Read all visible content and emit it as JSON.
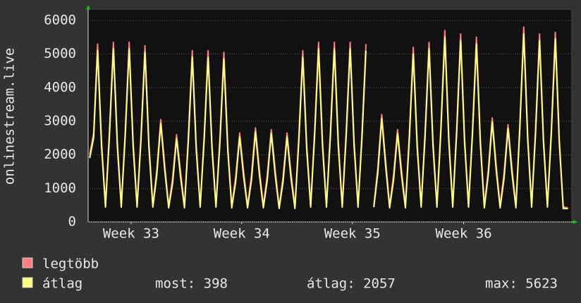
{
  "chart_data": {
    "type": "line",
    "ylabel": "onlinestream.live",
    "x": [
      0.1,
      0.35,
      0.6,
      0.85,
      1.1,
      1.35,
      1.6,
      1.85,
      2.1,
      2.35,
      2.6,
      2.85,
      3.1,
      3.35,
      3.6,
      3.85,
      4.1,
      4.35,
      4.6,
      4.85,
      5.1,
      5.35,
      5.6,
      5.85,
      6.1,
      6.35,
      6.6,
      6.85,
      7.1,
      7.35,
      7.6,
      7.85,
      8.1,
      8.35,
      8.6,
      8.85,
      9.1,
      9.35,
      9.6,
      9.85,
      10.1,
      10.35,
      10.6,
      10.85,
      11.1,
      11.35,
      11.6,
      11.85,
      12.1,
      12.35,
      12.6,
      12.85,
      13.1,
      13.35,
      13.6,
      13.85,
      14.1,
      14.35,
      14.6,
      14.85,
      15.1,
      15.35,
      15.6,
      15.85,
      16.1,
      16.35,
      16.6,
      16.85,
      17.1,
      17.35,
      17.6,
      17.85,
      18.1,
      18.35,
      18.6,
      18.85,
      19.1,
      19.35,
      19.6,
      19.85,
      20.1,
      20.35,
      20.6,
      20.85,
      21.1,
      21.35,
      21.6,
      21.85,
      22.1,
      22.35,
      22.6,
      22.85,
      23.1,
      23.35,
      23.6,
      23.85,
      24.1,
      24.35,
      24.6,
      24.85,
      25.1,
      25.35,
      25.6,
      25.85,
      26.1,
      26.35,
      26.6,
      26.85,
      27.1,
      27.35,
      27.6,
      27.85,
      28.1,
      28.35,
      28.6,
      28.85,
      29.1,
      29.35,
      29.6,
      29.85,
      30.1,
      30.4
    ],
    "series": [
      {
        "name": "legtöbb",
        "color": "#ff7f7f",
        "values": [
          2000,
          2650,
          5300,
          2400,
          500,
          2700,
          5350,
          2400,
          500,
          2700,
          5350,
          2400,
          500,
          2600,
          5250,
          2350,
          500,
          1550,
          3050,
          1700,
          480,
          1300,
          2600,
          1500,
          480,
          2550,
          5100,
          2300,
          500,
          2550,
          5100,
          2300,
          500,
          2500,
          5050,
          2250,
          480,
          1350,
          2650,
          1500,
          480,
          1400,
          2800,
          1550,
          480,
          1400,
          2750,
          1550,
          450,
          1350,
          2650,
          1450,
          450,
          2550,
          5100,
          2300,
          500,
          2700,
          5350,
          2400,
          500,
          2700,
          5350,
          2400,
          500,
          2700,
          5350,
          2400,
          500,
          2650,
          5300,
          null,
          500,
          1600,
          3200,
          1800,
          480,
          1400,
          2750,
          1550,
          480,
          2600,
          5200,
          2350,
          500,
          2700,
          5350,
          2400,
          500,
          2850,
          5700,
          2550,
          500,
          2800,
          5600,
          2500,
          500,
          2750,
          5500,
          2450,
          480,
          1550,
          3100,
          1700,
          480,
          1450,
          2900,
          1600,
          480,
          2900,
          5800,
          2600,
          500,
          2800,
          5600,
          2500,
          500,
          2800,
          5650,
          2500,
          450,
          420
        ]
      },
      {
        "name": "átlag",
        "color": "#ffff80",
        "values": [
          1900,
          2500,
          5100,
          2250,
          440,
          2550,
          5150,
          2250,
          440,
          2550,
          5150,
          2250,
          440,
          2450,
          5050,
          2200,
          440,
          1400,
          2930,
          1550,
          420,
          1150,
          2480,
          1350,
          420,
          2400,
          4900,
          2150,
          440,
          2400,
          4900,
          2150,
          440,
          2350,
          4850,
          2100,
          420,
          1200,
          2530,
          1350,
          420,
          1250,
          2680,
          1400,
          420,
          1250,
          2630,
          1400,
          400,
          1200,
          2530,
          1300,
          400,
          2400,
          4900,
          2150,
          440,
          2550,
          5150,
          2250,
          440,
          2550,
          5150,
          2250,
          440,
          2550,
          5150,
          2250,
          440,
          2500,
          5100,
          null,
          440,
          1450,
          3080,
          1650,
          420,
          1250,
          2630,
          1400,
          420,
          2450,
          5000,
          2200,
          440,
          2550,
          5150,
          2250,
          440,
          2700,
          5500,
          2400,
          440,
          2650,
          5400,
          2350,
          440,
          2600,
          5300,
          2300,
          420,
          1400,
          2980,
          1550,
          420,
          1300,
          2780,
          1450,
          420,
          2750,
          5600,
          2450,
          440,
          2650,
          5400,
          2350,
          440,
          2650,
          5450,
          2350,
          400,
          398
        ]
      }
    ],
    "stats": [
      "most: 398",
      "átlag: 2057",
      "max: 5623"
    ],
    "xlim": [
      0,
      30.6
    ],
    "xticks": [
      {
        "value": 2.72,
        "label": "Week 33"
      },
      {
        "value": 9.73,
        "label": "Week 34"
      },
      {
        "value": 16.74,
        "label": "Week 35"
      },
      {
        "value": 23.79,
        "label": "Week 36"
      }
    ],
    "ylim": [
      0,
      6000
    ],
    "yticks": [
      0,
      1000,
      2000,
      3000,
      4000,
      5000,
      6000
    ],
    "grid": true
  }
}
